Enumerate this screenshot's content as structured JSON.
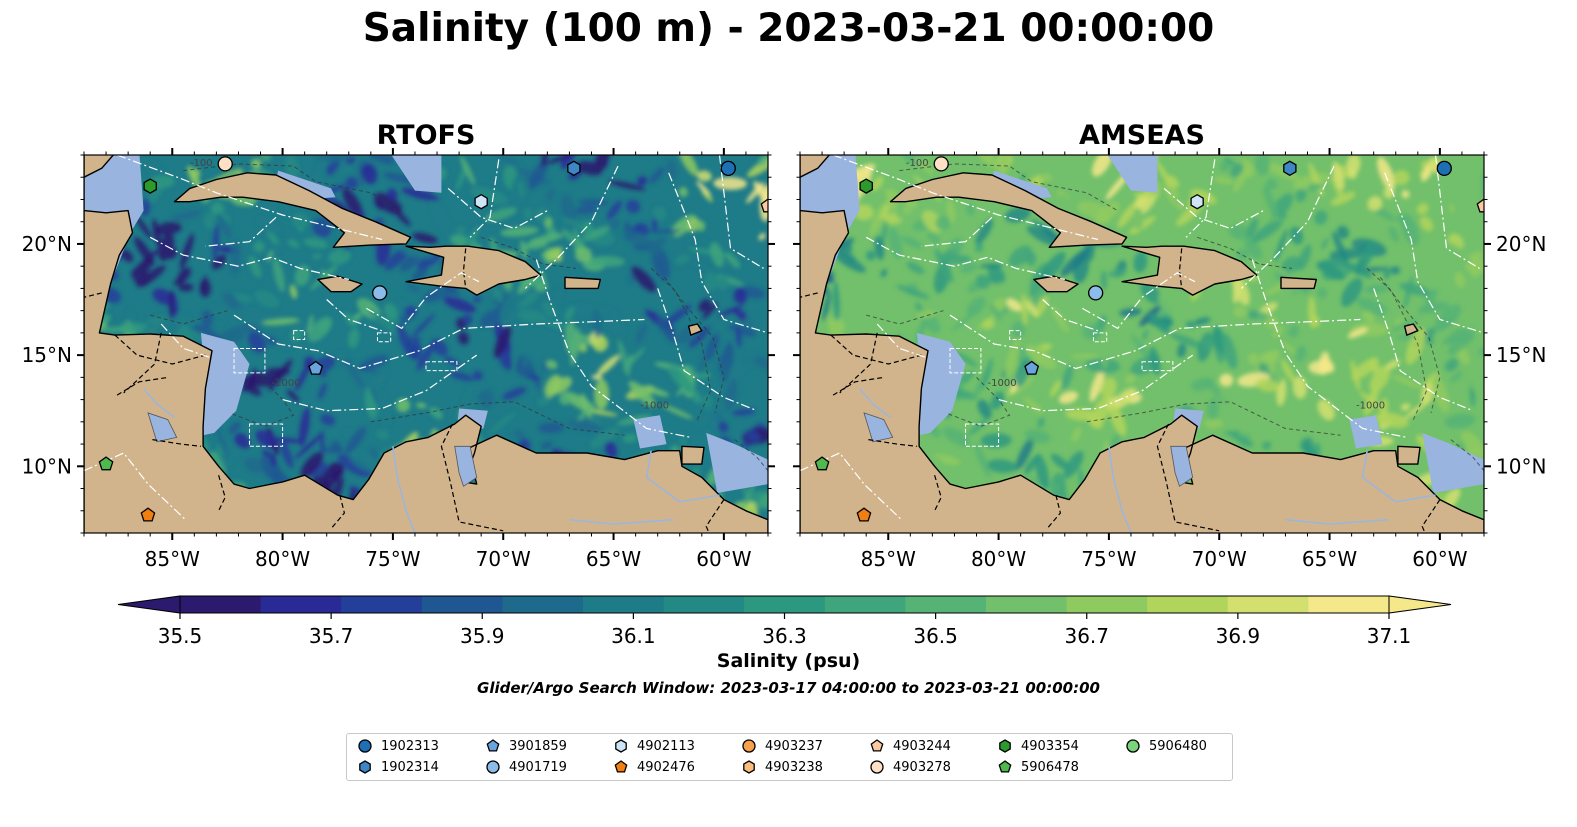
{
  "title": "Salinity (100 m) - 2023-03-21 00:00:00",
  "panels": [
    {
      "title": "RTOFS",
      "scheme": "rtofs"
    },
    {
      "title": "AMSEAS",
      "scheme": "amseas"
    }
  ],
  "map": {
    "lon_range": [
      -89.0,
      -58.0
    ],
    "lat_range": [
      7.0,
      24.0
    ],
    "lon_ticks": [
      {
        "value": -85,
        "label": "85°W"
      },
      {
        "value": -80,
        "label": "80°W"
      },
      {
        "value": -75,
        "label": "75°W"
      },
      {
        "value": -70,
        "label": "70°W"
      },
      {
        "value": -65,
        "label": "65°W"
      },
      {
        "value": -60,
        "label": "60°W"
      }
    ],
    "lat_ticks": [
      {
        "value": 20,
        "label": "20°N"
      },
      {
        "value": 15,
        "label": "15°N"
      },
      {
        "value": 10,
        "label": "10°N"
      }
    ],
    "contour_labels": [
      "-100",
      "-1000"
    ],
    "colors": {
      "land": "#d2b48c",
      "no_data": "#98b4df",
      "eez": "#ffffff",
      "coast": "#000000"
    }
  },
  "colorbar": {
    "label": "Salinity (psu)",
    "ticks": [
      "35.5",
      "35.7",
      "35.9",
      "36.1",
      "36.3",
      "36.5",
      "36.7",
      "36.9",
      "37.1"
    ],
    "range": [
      35.5,
      37.1
    ],
    "colors": [
      "#2b1a6e",
      "#2a2a96",
      "#243f9a",
      "#1e5792",
      "#1d6a8c",
      "#1e7b88",
      "#238984",
      "#2d9880",
      "#3ea57c",
      "#55b376",
      "#72c06b",
      "#8fca60",
      "#b1d55c",
      "#d3e070",
      "#f4e88a"
    ]
  },
  "subtitle": "Glider/Argo Search Window: 2023-03-17 04:00:00 to 2023-03-21 00:00:00",
  "floats": [
    {
      "id": "1902313",
      "lon": -59.8,
      "lat": 23.4,
      "marker": "circle",
      "color": "#1f6fb4"
    },
    {
      "id": "1902314",
      "lon": -66.8,
      "lat": 23.4,
      "marker": "hexagon",
      "color": "#3f86c6"
    },
    {
      "id": "3901859",
      "lon": -78.5,
      "lat": 14.4,
      "marker": "pentagon",
      "color": "#6aa4dc"
    },
    {
      "id": "4901719",
      "lon": -75.6,
      "lat": 17.8,
      "marker": "circle",
      "color": "#8cbde8"
    },
    {
      "id": "4902113",
      "lon": -71.0,
      "lat": 21.9,
      "marker": "hexagon",
      "color": "#cfe4f7"
    },
    {
      "id": "4902476",
      "lon": -86.1,
      "lat": 7.8,
      "marker": "pentagon",
      "color": "#f07e10"
    },
    {
      "id": "4903237",
      "lon": null,
      "lat": null,
      "marker": "circle",
      "color": "#f7a14a"
    },
    {
      "id": "4903238",
      "lon": null,
      "lat": null,
      "marker": "hexagon",
      "color": "#fbbd7b"
    },
    {
      "id": "4903244",
      "lon": -58.0,
      "lat": 21.7,
      "marker": "pentagon",
      "color": "#fcc9a1"
    },
    {
      "id": "4903278",
      "lon": -82.6,
      "lat": 23.6,
      "marker": "circle",
      "color": "#fde0c5"
    },
    {
      "id": "4903354",
      "lon": -86.0,
      "lat": 22.6,
      "marker": "hexagon",
      "color": "#2c9a2c"
    },
    {
      "id": "5906478",
      "lon": -88.0,
      "lat": 10.1,
      "marker": "pentagon",
      "color": "#4fb84f"
    },
    {
      "id": "5906480",
      "lon": null,
      "lat": null,
      "marker": "circle",
      "color": "#7ad47a"
    }
  ]
}
